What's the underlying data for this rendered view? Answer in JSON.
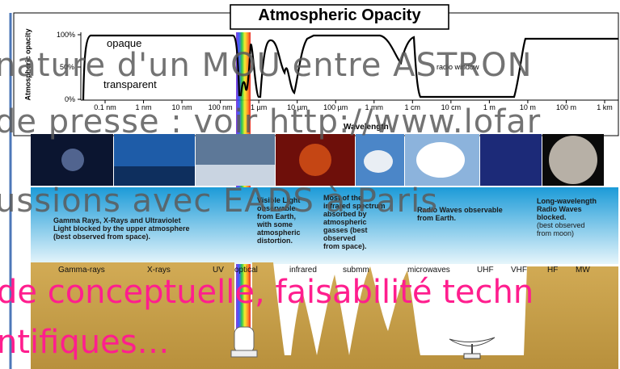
{
  "title": "Atmospheric Opacity",
  "y_axis_label": "Atmospheric opacity",
  "y_ticks": [
    "100%",
    "50%",
    "0%"
  ],
  "curve_labels": {
    "opaque": "opaque",
    "transparent": "transparent",
    "radio": "radio window"
  },
  "x_ticks": [
    "0.1 nm",
    "1 nm",
    "10 nm",
    "100 nm",
    "1 µm",
    "10 µm",
    "100 µm",
    "1 mm",
    "1 cm",
    "10 cm",
    "1 m",
    "10 m",
    "100 m",
    "1 km"
  ],
  "x_axis_label": "Wavelength",
  "captions": {
    "gamma": [
      "Gamma Rays, X-Rays and Ultraviolet",
      "Light blocked by the upper atmosphere",
      "(best observed from space)."
    ],
    "visible": [
      "Visible Light",
      "observable",
      "from Earth,",
      "with some",
      "atmospheric",
      "distortion."
    ],
    "infrared": [
      "Most of the",
      "infrared spectrum",
      "absorbed by",
      "atmospheric",
      "gasses (best",
      "observed",
      "from space)."
    ],
    "radio": [
      "Radio Waves observable",
      "from Earth."
    ],
    "longwave": [
      "Long-wavelength",
      "Radio Waves",
      "blocked.",
      "(best observed",
      "from moon)"
    ]
  },
  "bands": [
    "Gamma-rays",
    "X-rays",
    "UV",
    "optical",
    "infrared",
    "submm",
    "microwaves",
    "UHF",
    "VHF",
    "HF",
    "MW"
  ],
  "overlay_text": {
    "line1": "nature d'un MOU entre ASTRON",
    "line2": "de presse : voir http://www.lofar",
    "line3": "ussions avec EADS à Paris",
    "line4": "de conceptuelle, faisabilité techn",
    "line5": "ntifiques…"
  },
  "colors": {
    "sky_top": "#1c9bd8",
    "sky_bottom": "#e6f5fb",
    "ground": "#c9a04a",
    "overlay_pink": "#ff1e8e",
    "curve": "#000000"
  }
}
